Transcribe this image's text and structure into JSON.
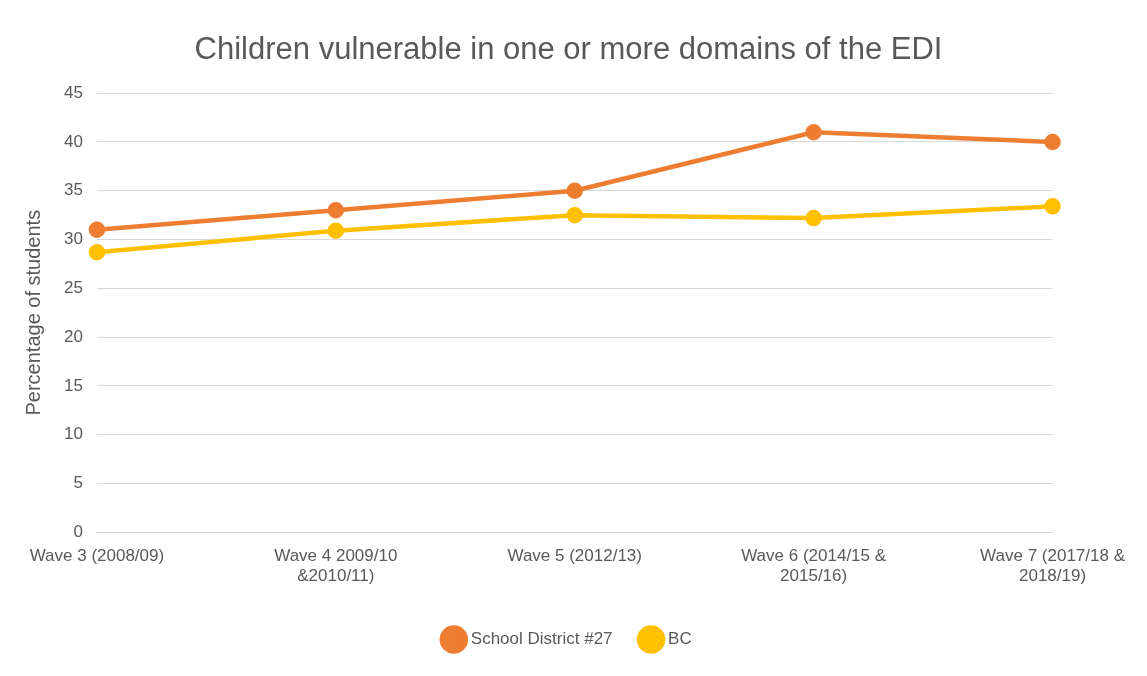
{
  "chart_data": {
    "type": "line",
    "title": "Children vulnerable in one or more domains of the EDI",
    "ylabel": "Percentage of students",
    "categories": [
      "Wave 3 (2008/09)",
      "Wave 4 2009/10 &2010/11)",
      "Wave 5 (2012/13)",
      "Wave 6 (2014/15 & 2015/16)",
      "Wave 7 (2017/18 & 2018/19)"
    ],
    "series": [
      {
        "name": "School District #27",
        "color": "#ed7d31",
        "values": [
          31,
          33,
          35,
          41,
          40
        ]
      },
      {
        "name": "BC",
        "color": "#ffc000",
        "values": [
          28.7,
          30.9,
          32.5,
          32.2,
          33.4
        ]
      }
    ],
    "ylim": [
      0,
      45
    ],
    "yticks": [
      0,
      5,
      10,
      15,
      20,
      25,
      30,
      35,
      40,
      45
    ],
    "grid": "y",
    "legend": "bottom",
    "marker": "circle",
    "line_style": "solid"
  }
}
